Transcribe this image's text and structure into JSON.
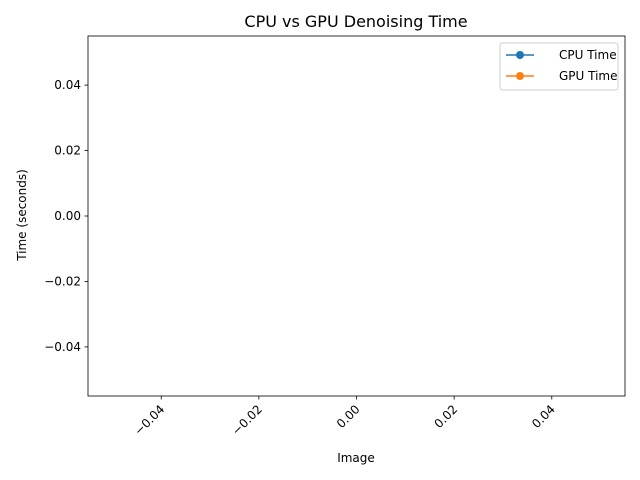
{
  "chart_data": {
    "type": "line",
    "title": "CPU vs GPU Denoising Time",
    "xlabel": "Image",
    "ylabel": "Time (seconds)",
    "xlim": [
      -0.055,
      0.055
    ],
    "ylim": [
      -0.055,
      0.055
    ],
    "x_ticks": [
      -0.04,
      -0.02,
      0.0,
      0.02,
      0.04
    ],
    "x_tick_labels": [
      "−0.04",
      "−0.02",
      "0.00",
      "0.02",
      "0.04"
    ],
    "y_ticks": [
      0.04,
      0.02,
      0.0,
      -0.02,
      -0.04
    ],
    "y_tick_labels": [
      "0.04",
      "0.02",
      "0.00",
      "−0.02",
      "−0.04"
    ],
    "x_tick_rotation": 45,
    "grid": false,
    "legend_position": "top-right",
    "x": [],
    "series": [
      {
        "name": "CPU Time",
        "color": "#1f77b4",
        "marker": "circle",
        "values": []
      },
      {
        "name": "GPU Time",
        "color": "#ff7f0e",
        "marker": "circle",
        "values": []
      }
    ]
  }
}
